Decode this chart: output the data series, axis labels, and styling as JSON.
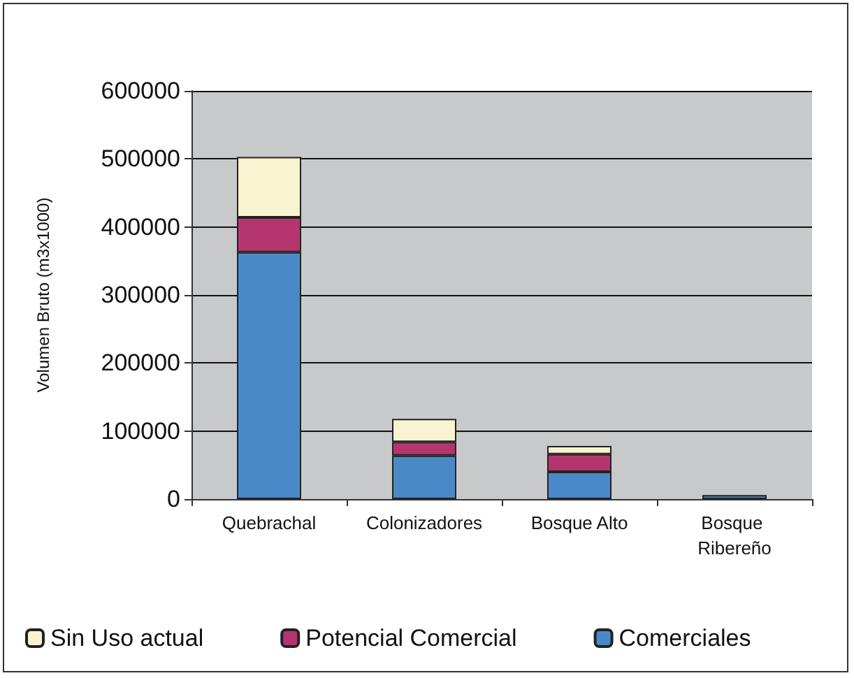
{
  "chart_data": {
    "type": "bar",
    "stacked": true,
    "ylabel": "Volumen Bruto (m3x1000)",
    "categories": [
      "Quebrachal",
      "Colonizadores",
      "Bosque Alto",
      "Bosque Ribereño"
    ],
    "series": [
      {
        "name": "Comerciales",
        "color": "#4a89c8",
        "values": [
          363000,
          64000,
          40000,
          6000
        ]
      },
      {
        "name": "Potencial Comercial",
        "color": "#b5366f",
        "values": [
          51000,
          20000,
          26000,
          null
        ]
      },
      {
        "name": "Sin Uso actual",
        "color": "#f8f3d0",
        "values": [
          89000,
          34000,
          12000,
          null
        ]
      }
    ],
    "ylim": [
      0,
      600000
    ],
    "yticks": [
      0,
      100000,
      200000,
      300000,
      400000,
      500000,
      600000
    ],
    "grid": "y",
    "legend": "bottom"
  }
}
